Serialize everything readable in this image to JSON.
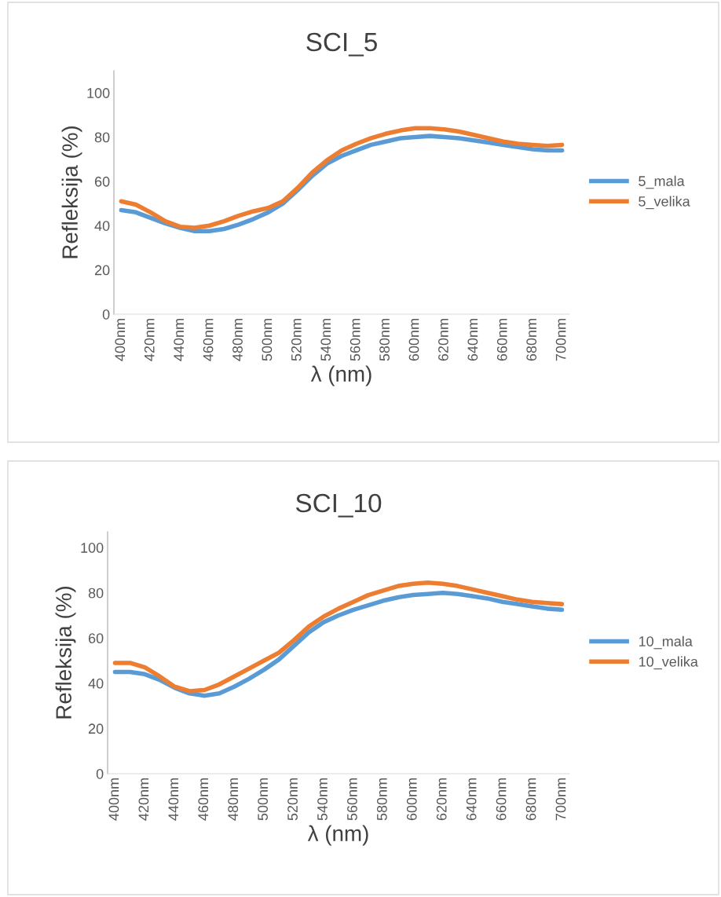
{
  "chart_data": [
    {
      "type": "line",
      "title": "SCI_5",
      "xlabel": "λ (nm)",
      "ylabel": "Refleksija (%)",
      "categories": [
        "400nm",
        null,
        "420nm",
        null,
        "440nm",
        null,
        "460nm",
        null,
        "480nm",
        null,
        "500nm",
        null,
        "520nm",
        null,
        "540nm",
        null,
        "560nm",
        null,
        "580nm",
        null,
        "600nm",
        null,
        "620nm",
        null,
        "640nm",
        null,
        "660nm",
        null,
        "680nm",
        null,
        "700nm"
      ],
      "ylim": [
        0,
        110
      ],
      "yticks": [
        0,
        20,
        40,
        60,
        80,
        100
      ],
      "grid": false,
      "legend": "right",
      "marker": "none",
      "line_style": "solid",
      "series": [
        {
          "name": "5_mala",
          "color": "#5b9bd5",
          "values": [
            47,
            46,
            43.5,
            41,
            39,
            37.5,
            37.5,
            38.5,
            40.5,
            43,
            46,
            50,
            56,
            62.5,
            68,
            71.5,
            74,
            76.5,
            78,
            79.5,
            80,
            80.5,
            80,
            79.5,
            78.5,
            77.5,
            76.5,
            75.5,
            74.5,
            74,
            74
          ]
        },
        {
          "name": "5_velika",
          "color": "#ed7d31",
          "values": [
            51,
            49.5,
            46,
            42,
            39.5,
            39,
            40,
            42,
            44.5,
            46.5,
            48,
            51,
            57,
            64,
            69.5,
            74,
            77,
            79.5,
            81.5,
            83,
            84,
            84,
            83.5,
            82.5,
            81,
            79.5,
            78,
            77,
            76.5,
            76,
            76.5
          ]
        }
      ]
    },
    {
      "type": "line",
      "title": "SCI_10",
      "xlabel": "λ (nm)",
      "ylabel": "Refleksija (%)",
      "categories": [
        "400nm",
        null,
        "420nm",
        null,
        "440nm",
        null,
        "460nm",
        null,
        "480nm",
        null,
        "500nm",
        null,
        "520nm",
        null,
        "540nm",
        null,
        "560nm",
        null,
        "580nm",
        null,
        "600nm",
        null,
        "620nm",
        null,
        "640nm",
        null,
        "660nm",
        null,
        "680nm",
        null,
        "700nm"
      ],
      "ylim": [
        0,
        107
      ],
      "yticks": [
        0,
        20,
        40,
        60,
        80,
        100
      ],
      "grid": false,
      "legend": "right",
      "marker": "none",
      "line_style": "solid",
      "series": [
        {
          "name": "10_mala",
          "color": "#5b9bd5",
          "values": [
            45,
            45,
            44,
            41.5,
            38,
            35.5,
            34.5,
            35.5,
            38.5,
            42,
            46,
            50.5,
            56.5,
            62.5,
            67,
            70,
            72.5,
            74.5,
            76.5,
            78,
            79,
            79.5,
            80,
            79.5,
            78.5,
            77.5,
            76,
            75,
            74,
            73,
            72.5
          ]
        },
        {
          "name": "10_velika",
          "color": "#ed7d31",
          "values": [
            49,
            49,
            47,
            43,
            38.5,
            36.5,
            37,
            39.5,
            43,
            46.5,
            50,
            53.5,
            59,
            65,
            69.5,
            73,
            76,
            79,
            81,
            83,
            84,
            84.5,
            84,
            83,
            81.5,
            80,
            78.5,
            77,
            76,
            75.5,
            75
          ]
        }
      ]
    }
  ]
}
